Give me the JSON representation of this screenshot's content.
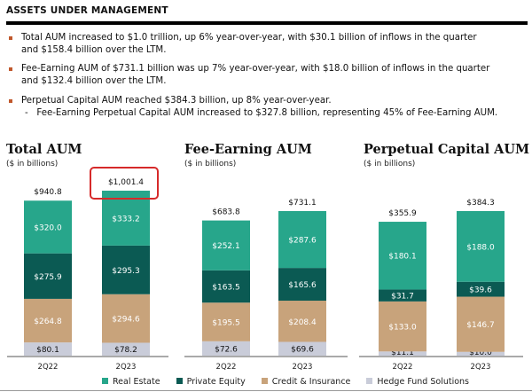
{
  "header": "ASSETS UNDER MANAGEMENT",
  "bullets": [
    {
      "l1": "Total AUM increased to $1.0 trillion, up 6% year-over-year, with $30.1 billion of inflows in the quarter",
      "l2": "and $158.4 billion over the LTM."
    },
    {
      "l1": "Fee-Earning AUM of $731.1 billion was up 7% year-over-year, with $18.0 billion of inflows in the quarter",
      "l2": "and $132.4 billion over the LTM."
    },
    {
      "l1": "Perpetual Capital AUM reached $384.3 billion, up 8% year-over-year.",
      "sub": "Fee-Earning Perpetual Capital AUM increased to $327.8 billion, representing 45% of Fee-Earning AUM."
    }
  ],
  "colors": {
    "Real Estate": "#27a68b",
    "Private Equity": "#0b5a53",
    "Credit & Insurance": "#c8a37b",
    "Hedge Fund Solutions": "#c9ccd9",
    "highlight": "#d62a2a",
    "bullet": "#c0572b"
  },
  "legend": [
    "Real Estate",
    "Private Equity",
    "Credit & Insurance",
    "Hedge Fund Solutions"
  ],
  "chart_data": [
    {
      "type": "bar",
      "stacked": true,
      "title": "Total AUM",
      "subtitle": "($ in billions)",
      "categories": [
        "2Q22",
        "2Q23"
      ],
      "totals": [
        "$940.8",
        "$1,001.4"
      ],
      "highlighted_total": "2Q23",
      "series": [
        {
          "name": "Hedge Fund Solutions",
          "values": [
            80.1,
            78.2
          ]
        },
        {
          "name": "Credit & Insurance",
          "values": [
            264.8,
            294.6
          ]
        },
        {
          "name": "Private Equity",
          "values": [
            275.9,
            295.3
          ]
        },
        {
          "name": "Real Estate",
          "values": [
            320.0,
            333.2
          ]
        }
      ]
    },
    {
      "type": "bar",
      "stacked": true,
      "title": "Fee-Earning AUM",
      "subtitle": "($ in billions)",
      "categories": [
        "2Q22",
        "2Q23"
      ],
      "totals": [
        "$683.8",
        "$731.1"
      ],
      "series": [
        {
          "name": "Hedge Fund Solutions",
          "values": [
            72.6,
            69.6
          ]
        },
        {
          "name": "Credit & Insurance",
          "values": [
            195.5,
            208.4
          ]
        },
        {
          "name": "Private Equity",
          "values": [
            163.5,
            165.6
          ]
        },
        {
          "name": "Real Estate",
          "values": [
            252.1,
            287.6
          ]
        }
      ]
    },
    {
      "type": "bar",
      "stacked": true,
      "title": "Perpetual Capital AUM",
      "subtitle": "($ in billions)",
      "categories": [
        "2Q22",
        "2Q23"
      ],
      "totals": [
        "$355.9",
        "$384.3"
      ],
      "series": [
        {
          "name": "Hedge Fund Solutions",
          "values": [
            11.1,
            10.0
          ]
        },
        {
          "name": "Credit & Insurance",
          "values": [
            133.0,
            146.7
          ]
        },
        {
          "name": "Private Equity",
          "values": [
            31.7,
            39.6
          ]
        },
        {
          "name": "Real Estate",
          "values": [
            180.1,
            188.0
          ]
        }
      ]
    }
  ]
}
